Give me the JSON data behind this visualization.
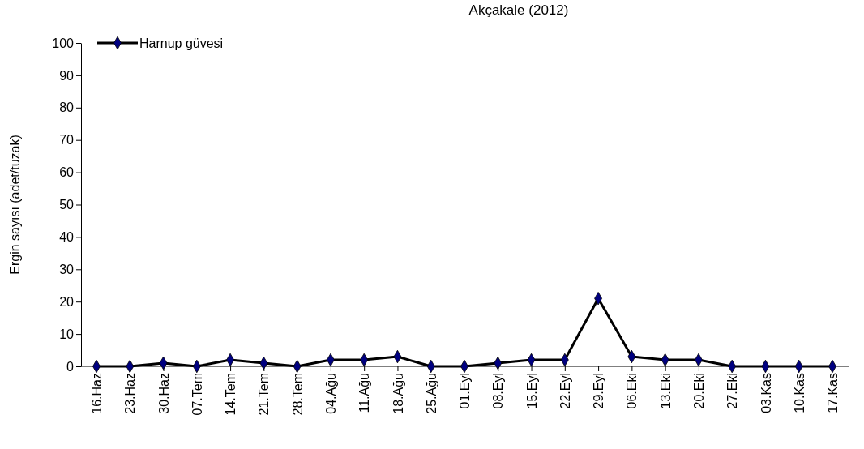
{
  "chart_data": {
    "type": "line",
    "title": "Akçakale (2012)",
    "ylabel": "Ergin sayısı (adet/tuzak)",
    "categories": [
      "16.Haz",
      "23.Haz",
      "30.Haz",
      "07.Tem",
      "14.Tem",
      "21.Tem",
      "28.Tem",
      "04.Ağu",
      "11.Ağu",
      "18.Ağu",
      "25.Ağu",
      "01.Eyl",
      "08.Eyl",
      "15.Eyl",
      "22.Eyl",
      "29.Eyl",
      "06.Eki",
      "13.Eki",
      "20.Eki",
      "27.Eki",
      "03.Kas",
      "10.Kas",
      "17.Kas"
    ],
    "series": [
      {
        "name": "Harnup güvesi",
        "color": "#000080",
        "values": [
          0,
          0,
          1,
          0,
          2,
          1,
          0,
          2,
          2,
          3,
          0,
          0,
          1,
          2,
          2,
          21,
          3,
          2,
          2,
          0,
          0,
          0,
          0
        ]
      }
    ],
    "ylim": [
      0,
      100
    ],
    "yticks": [
      0,
      10,
      20,
      30,
      40,
      50,
      60,
      70,
      80,
      90,
      100
    ],
    "grid": false,
    "legend": "top left",
    "marker": "diamond",
    "line_style": "solid"
  }
}
